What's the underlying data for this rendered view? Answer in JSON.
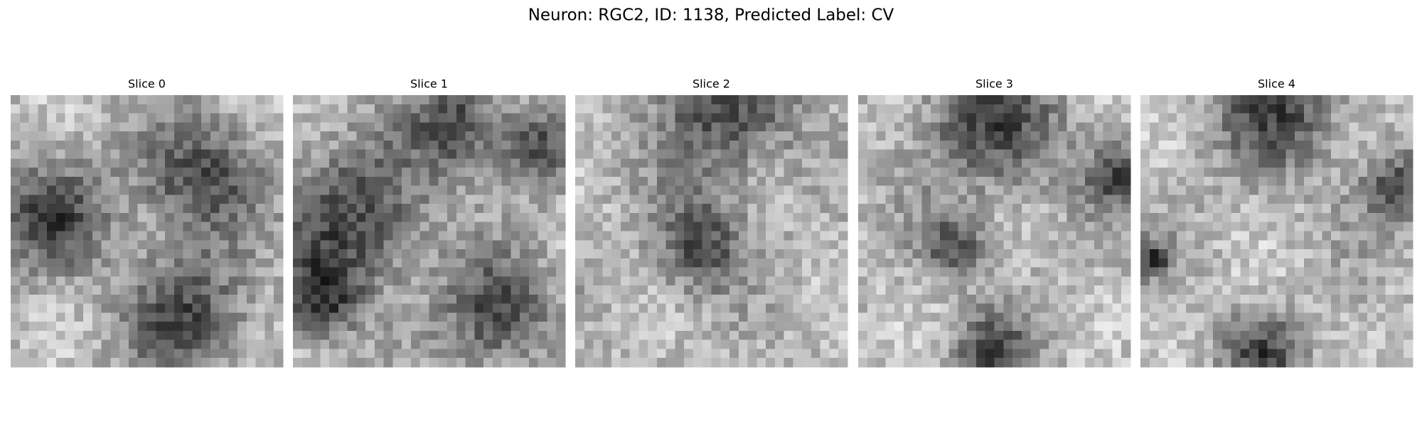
{
  "title": "Neuron: RGC2, ID: 1138, Predicted Label: CV",
  "panels": [
    {
      "title": "Slice 0"
    },
    {
      "title": "Slice 1"
    },
    {
      "title": "Slice 2"
    },
    {
      "title": "Slice 3"
    },
    {
      "title": "Slice 4"
    }
  ]
}
